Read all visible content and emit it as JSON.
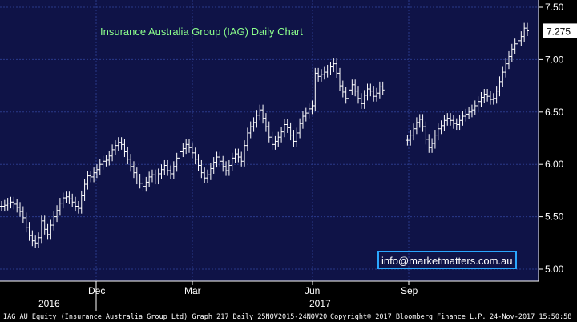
{
  "chart_data": {
    "type": "line",
    "title": "Insurance Australia Group (IAG) Daily Chart",
    "x_ticks": [
      "Dec",
      "Mar",
      "Jun",
      "Sep"
    ],
    "year_labels": [
      "2016",
      "2017"
    ],
    "y_ticks": [
      "5.00",
      "5.50",
      "6.00",
      "6.50",
      "7.00",
      "7.50"
    ],
    "ylim": [
      4.9,
      7.52
    ],
    "last_price_label": "7.275",
    "last_price": 7.275,
    "grid": true,
    "series": [
      {
        "values": [
          5.6,
          5.61,
          5.63,
          5.64,
          5.62,
          5.59,
          5.55,
          5.49,
          5.4,
          5.32,
          5.27,
          5.25,
          5.3,
          5.46,
          5.38,
          5.33,
          5.42,
          5.5,
          5.56,
          5.63,
          5.68,
          5.69,
          5.67,
          5.64,
          5.6,
          5.58,
          5.7,
          5.81,
          5.89,
          5.88,
          5.92,
          5.95,
          6.0,
          6.03,
          6.04,
          6.08,
          6.14,
          6.18,
          6.21,
          6.19,
          6.12,
          6.05,
          5.98,
          5.92,
          5.86,
          5.82,
          5.79,
          5.83,
          5.88,
          5.9,
          5.86,
          5.91,
          5.95,
          5.99,
          5.94,
          5.91,
          5.98,
          6.06,
          6.12,
          6.15,
          6.19,
          6.16,
          6.11,
          6.05,
          5.99,
          5.92,
          5.87,
          5.9,
          5.96,
          6.02,
          6.07,
          6.03,
          5.98,
          5.94,
          5.99,
          6.06,
          6.1,
          6.07,
          6.03,
          6.18,
          6.3,
          6.36,
          6.4,
          6.47,
          6.52,
          6.44,
          6.36,
          6.26,
          6.19,
          6.22,
          6.26,
          6.31,
          6.38,
          6.35,
          6.28,
          6.22,
          6.3,
          6.39,
          6.46,
          6.49,
          6.53,
          6.56,
          6.87,
          6.84,
          6.86,
          6.88,
          6.9,
          6.93,
          6.96,
          6.87,
          6.75,
          6.69,
          6.63,
          6.71,
          6.76,
          6.7,
          6.63,
          6.58,
          6.66,
          6.72,
          6.7,
          6.65,
          6.68,
          6.74,
          6.71,
          null,
          null,
          null,
          null,
          null,
          null,
          null,
          6.23,
          6.28,
          6.34,
          6.4,
          6.43,
          6.36,
          6.24,
          6.16,
          6.2,
          6.28,
          6.34,
          6.37,
          6.42,
          6.44,
          6.42,
          6.39,
          6.38,
          6.42,
          6.46,
          6.48,
          6.5,
          6.52,
          6.56,
          6.6,
          6.64,
          6.67,
          6.65,
          6.62,
          6.63,
          6.7,
          6.79,
          6.88,
          6.96,
          7.03,
          7.1,
          7.15,
          7.18,
          7.22,
          7.3,
          7.275
        ]
      }
    ]
  },
  "email_label": "info@marketmatters.com.au",
  "footer_left": "IAG AU Equity (Insurance Australia Group Ltd) Graph 217  Daily 25NOV2015-24NOV20",
  "footer_mid": "Copyright® 2017 Bloomberg Finance L.P.",
  "footer_right": "24-Nov-2017 15:50:58",
  "colors": {
    "background": "#000000",
    "plot_background": "#0f1347",
    "grid": "#2a3a8a",
    "price_bars": "#ffffff",
    "title": "#8cff8c",
    "email_border": "#2aa7ff"
  }
}
